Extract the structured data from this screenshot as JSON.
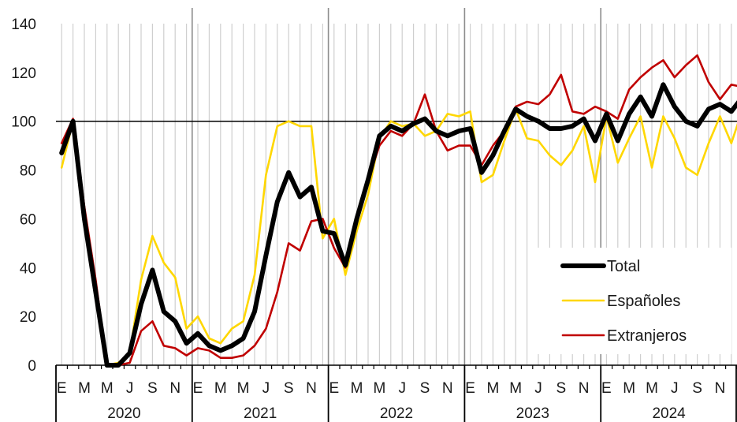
{
  "chart_data": {
    "type": "line",
    "title": "",
    "xlabel": "",
    "ylabel": "",
    "ylim": [
      0,
      140
    ],
    "yticks": [
      0,
      20,
      40,
      60,
      80,
      100,
      120,
      140
    ],
    "reference_line": 100,
    "grid": "vertical monthly gridlines, light grey",
    "legend_position": "bottom-right",
    "month_labels": [
      "E",
      "M",
      "M",
      "J",
      "S",
      "N"
    ],
    "years": [
      "2020",
      "2021",
      "2022",
      "2023",
      "2024"
    ],
    "series": [
      {
        "name": "Total",
        "color": "#000000",
        "values": [
          87,
          100,
          60,
          30,
          0,
          0,
          5,
          25,
          39,
          22,
          18,
          9,
          13,
          8,
          6,
          8,
          11,
          22,
          45,
          67,
          79,
          69,
          73,
          55,
          54,
          41,
          60,
          76,
          94,
          98,
          96,
          99,
          101,
          96,
          94,
          96,
          97,
          79,
          86,
          96,
          105,
          102,
          100,
          97,
          97,
          98,
          101,
          92,
          103,
          92,
          103,
          110,
          102,
          115,
          106,
          100,
          98,
          105,
          107,
          104,
          110
        ]
      },
      {
        "name": "Españoles",
        "color": "#ffd700",
        "values": [
          81,
          100,
          60,
          30,
          0,
          1,
          5,
          35,
          53,
          42,
          36,
          15,
          20,
          11,
          9,
          15,
          18,
          37,
          78,
          98,
          100,
          98,
          98,
          52,
          60,
          37,
          55,
          70,
          93,
          100,
          98,
          99,
          94,
          96,
          103,
          102,
          104,
          75,
          78,
          92,
          105,
          93,
          92,
          86,
          82,
          88,
          98,
          75,
          102,
          83,
          93,
          102,
          81,
          102,
          93,
          81,
          78,
          91,
          102,
          91,
          105
        ]
      },
      {
        "name": "Extranjeros",
        "color": "#c00000",
        "values": [
          91,
          101,
          65,
          35,
          0,
          0,
          1,
          14,
          18,
          8,
          7,
          4,
          7,
          6,
          3,
          3,
          4,
          8,
          15,
          30,
          50,
          47,
          59,
          60,
          48,
          40,
          60,
          76,
          90,
          96,
          94,
          99,
          111,
          96,
          88,
          90,
          90,
          82,
          90,
          96,
          106,
          108,
          107,
          111,
          119,
          104,
          103,
          106,
          104,
          101,
          113,
          118,
          122,
          125,
          118,
          123,
          127,
          116,
          109,
          115,
          114
        ]
      }
    ]
  }
}
